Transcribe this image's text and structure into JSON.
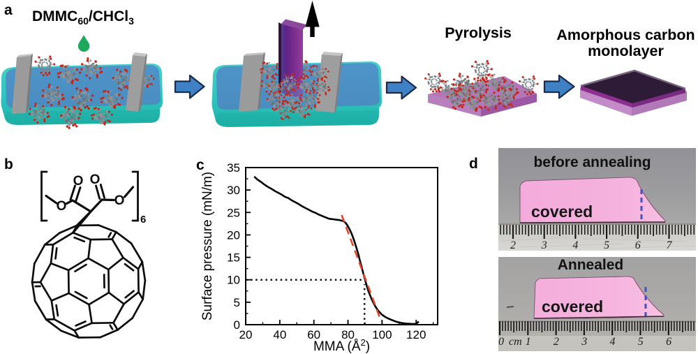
{
  "figure": {
    "panel_labels": {
      "a": "a",
      "b": "b",
      "c": "c",
      "d": "d"
    }
  },
  "panel_a": {
    "solution_label": {
      "p1": "DMMC",
      "sub1": "60",
      "p2": "/CHCl",
      "sub2": "3"
    },
    "pyrolysis_label": "Pyrolysis",
    "product_label_line1": "Amorphous carbon",
    "product_label_line2": "monolayer",
    "colors": {
      "trough_body": "#2fbfb7",
      "water": "#4e92c5",
      "barrier": "#9b9b9b",
      "plate": "#7c2d8c",
      "arrow": "#3e81c4",
      "droplet": "#1ea95c"
    }
  },
  "panel_b": {
    "oxygen_label": "O",
    "repeat_subscript": "6"
  },
  "chart_data": {
    "type": "line",
    "title": "",
    "xlabel_prefix": "MMA (Å",
    "xlabel_sup": "2",
    "xlabel_suffix": ")",
    "ylabel": "Surface pressure (mN/m)",
    "xlim": [
      20,
      132.6
    ],
    "ylim": [
      0,
      35
    ],
    "xticks": [
      20,
      40,
      60,
      80,
      100,
      120
    ],
    "yticks": [
      0,
      5,
      10,
      15,
      20,
      25,
      30,
      35
    ],
    "x_minor_step": 10,
    "y_minor_step": 2.5,
    "grid": false,
    "series": [
      {
        "name": "isotherm",
        "color": "#000000",
        "style": "solid",
        "width": 2.6,
        "points": [
          [
            25,
            33
          ],
          [
            27,
            32.3
          ],
          [
            29,
            31.8
          ],
          [
            31,
            31.2
          ],
          [
            33,
            30.7
          ],
          [
            35,
            30.3
          ],
          [
            37,
            29.8
          ],
          [
            39,
            29.4
          ],
          [
            41,
            29.0
          ],
          [
            43,
            28.5
          ],
          [
            45,
            28.2
          ],
          [
            47,
            27.7
          ],
          [
            49,
            27.3
          ],
          [
            51,
            26.9
          ],
          [
            53,
            26.4
          ],
          [
            55,
            26.0
          ],
          [
            57,
            25.6
          ],
          [
            59,
            25.2
          ],
          [
            61,
            24.9
          ],
          [
            63,
            24.5
          ],
          [
            65,
            24.2
          ],
          [
            67,
            23.9
          ],
          [
            69,
            23.6
          ],
          [
            71,
            23.5
          ],
          [
            73,
            23.4
          ],
          [
            75,
            23.3
          ],
          [
            76,
            23.2
          ],
          [
            77,
            23.1
          ],
          [
            78,
            22.9
          ],
          [
            79,
            22.5
          ],
          [
            80,
            21.9
          ],
          [
            81,
            21.2
          ],
          [
            82,
            20.4
          ],
          [
            83,
            19.4
          ],
          [
            84,
            18.3
          ],
          [
            85,
            17.1
          ],
          [
            86,
            15.8
          ],
          [
            87,
            14.3
          ],
          [
            88,
            12.9
          ],
          [
            89,
            11.4
          ],
          [
            90,
            10.0
          ],
          [
            91,
            8.7
          ],
          [
            92,
            7.5
          ],
          [
            93,
            6.5
          ],
          [
            94,
            5.6
          ],
          [
            95,
            4.8
          ],
          [
            96,
            4.1
          ],
          [
            97,
            3.5
          ],
          [
            98,
            3.0
          ],
          [
            99,
            2.6
          ],
          [
            100,
            2.2
          ],
          [
            102,
            1.7
          ],
          [
            104,
            1.3
          ],
          [
            106,
            1.0
          ],
          [
            108,
            0.7
          ],
          [
            110,
            0.5
          ],
          [
            112,
            0.35
          ],
          [
            114,
            0.25
          ],
          [
            116,
            0.2
          ],
          [
            118,
            0.15
          ],
          [
            120,
            0.2
          ],
          [
            121.5,
            0.7
          ]
        ]
      },
      {
        "name": "tangent",
        "color": "#e8432a",
        "style": "dashed",
        "width": 2.6,
        "points": [
          [
            76.3,
            24.4
          ],
          [
            99.5,
            0.7
          ]
        ]
      },
      {
        "name": "guide-horizontal",
        "color": "#111111",
        "style": "dotted",
        "width": 2.5,
        "points": [
          [
            20,
            10
          ],
          [
            89,
            10
          ]
        ]
      },
      {
        "name": "guide-vertical",
        "color": "#111111",
        "style": "dotted",
        "width": 2.5,
        "points": [
          [
            89.7,
            0
          ],
          [
            89.7,
            9.0
          ]
        ]
      }
    ]
  },
  "panel_d": {
    "top_photo": {
      "title": "before annealing",
      "paper_label": "covered",
      "ruler_numbers": [
        "2",
        "3",
        "4",
        "5",
        "6",
        "7"
      ]
    },
    "bottom_photo": {
      "title": "Annealed",
      "paper_label": "covered",
      "ruler_numbers": [
        "0",
        "cm",
        "1",
        "2",
        "3",
        "4",
        "5",
        "6"
      ]
    }
  }
}
